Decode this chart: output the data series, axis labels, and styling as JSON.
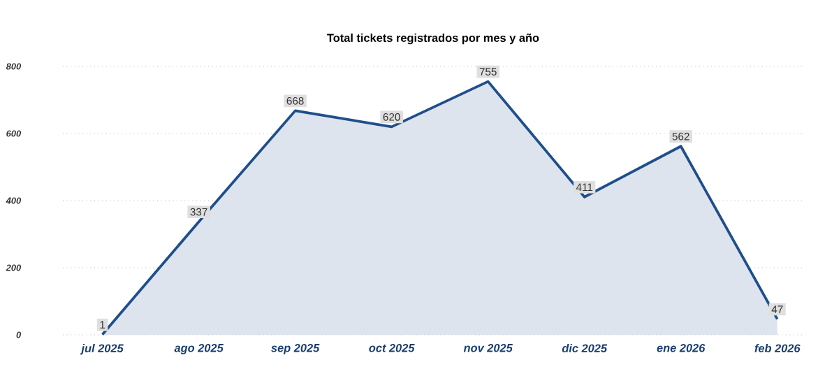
{
  "chart_data": {
    "type": "area",
    "title": "Total tickets registrados por mes y año",
    "categories": [
      "jul 2025",
      "ago 2025",
      "sep 2025",
      "oct 2025",
      "nov 2025",
      "dic 2025",
      "ene 2026",
      "feb 2026"
    ],
    "values": [
      1,
      337,
      668,
      620,
      755,
      411,
      562,
      47
    ],
    "color": "#1f4e8c",
    "ylim": [
      0,
      800
    ],
    "yticks": [
      0,
      200,
      400,
      600,
      800
    ],
    "grid": "y",
    "data_labels": true
  }
}
